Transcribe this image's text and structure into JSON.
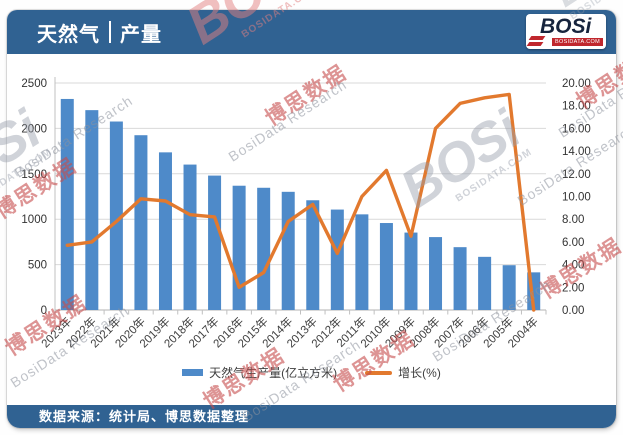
{
  "header": {
    "title_part1": "天然气",
    "title_part2": "产量"
  },
  "logo": {
    "text": "BOSi",
    "subtext": "BOSIDATA.COM"
  },
  "footer": {
    "source_label": "数据来源：统计局、博思数据整理"
  },
  "watermarks": {
    "cn": "博思数据",
    "en": "BosiData Research",
    "logo": "BOSi",
    "logo_sub": "BOSIDATA.COM"
  },
  "chart_data": {
    "type": "bar",
    "subtype": "combo bar+line, dual axis",
    "title": "天然气 | 产量",
    "categories": [
      "2023年",
      "2022年",
      "2021年",
      "2020年",
      "2019年",
      "2018年",
      "2017年",
      "2016年",
      "2015年",
      "2014年",
      "2013年",
      "2012年",
      "2011年",
      "2010年",
      "2009年",
      "2008年",
      "2007年",
      "2006年",
      "2005年",
      "2004年"
    ],
    "series": [
      {
        "name": "天然气生产量(亿立方米)",
        "type": "bar",
        "axis": "left",
        "color": "#4e8ac9",
        "values": [
          2324.3,
          2201.1,
          2075.8,
          1925.0,
          1736.2,
          1601.6,
          1480.3,
          1368.7,
          1346.1,
          1301.6,
          1208.6,
          1106.1,
          1053.4,
          957.9,
          852.7,
          803.0,
          692.0,
          585.5,
          493.2,
          414.6
        ]
      },
      {
        "name": "增长(%)",
        "type": "line",
        "axis": "right",
        "color": "#e2792e",
        "values": [
          5.7,
          6.0,
          7.8,
          9.8,
          9.6,
          8.4,
          8.2,
          2.0,
          3.3,
          7.8,
          9.3,
          5.0,
          10.0,
          12.3,
          6.5,
          16.0,
          18.2,
          18.7,
          19.0,
          0.0
        ]
      }
    ],
    "left_axis": {
      "min": 0,
      "max": 2500,
      "step": 500,
      "ticks": [
        "0",
        "500",
        "1000",
        "1500",
        "2000",
        "2500"
      ]
    },
    "right_axis": {
      "min": 0,
      "max": 20,
      "step": 2,
      "ticks": [
        "0.00",
        "2.00",
        "4.00",
        "6.00",
        "8.00",
        "10.00",
        "12.00",
        "14.00",
        "16.00",
        "18.00",
        "20.00"
      ]
    },
    "legend_position": "bottom",
    "grid": "horizontal"
  }
}
